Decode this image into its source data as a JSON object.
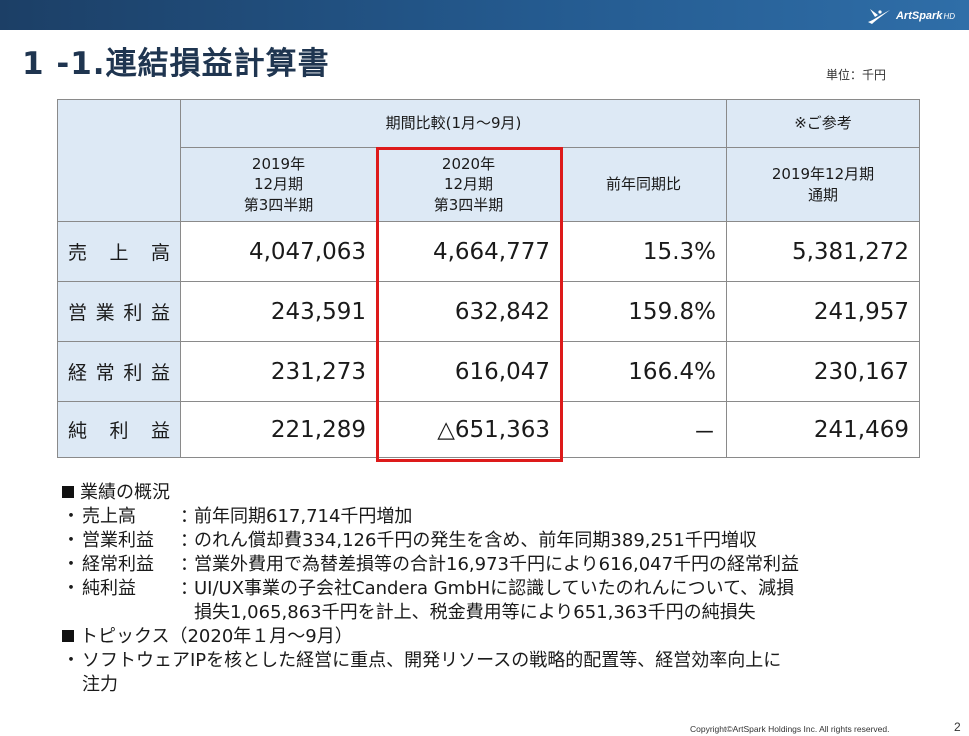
{
  "logo": {
    "name": "ArtSpark",
    "suffix": "HD"
  },
  "title": "1 -1.連結損益計算書",
  "unit": "単位：千円",
  "table": {
    "group_header": "期間比較(1月～9月)",
    "ref_header": "※ご参考",
    "columns": [
      {
        "lines": [
          "2019年",
          "12月期",
          "第3四半期"
        ]
      },
      {
        "lines": [
          "2020年",
          "12月期",
          "第3四半期"
        ]
      },
      {
        "lines": [
          "前年同期比"
        ]
      },
      {
        "lines": [
          "2019年12月期",
          "通期"
        ]
      }
    ],
    "rows": [
      {
        "label": [
          "売",
          "上",
          "高"
        ],
        "values": [
          "4,047,063",
          "4,664,777",
          "15.3%",
          "5,381,272"
        ]
      },
      {
        "label": [
          "営",
          "業",
          "利",
          "益"
        ],
        "values": [
          "243,591",
          "632,842",
          "159.8%",
          "241,957"
        ]
      },
      {
        "label": [
          "経",
          "常",
          "利",
          "益"
        ],
        "values": [
          "231,273",
          "616,047",
          "166.4%",
          "230,167"
        ]
      },
      {
        "label": [
          "純",
          "利",
          "益"
        ],
        "values": [
          "221,289",
          "△651,363",
          "－",
          "241,469"
        ]
      }
    ],
    "highlight_color": "#dd1a1a"
  },
  "summary": {
    "heading": "業績の概況",
    "items": [
      {
        "label": "売上高",
        "text": "前年同期617,714千円増加"
      },
      {
        "label": "営業利益",
        "text": "のれん償却費334,126千円の発生を含め、前年同期389,251千円増収"
      },
      {
        "label": "経常利益",
        "text": "営業外費用で為替差損等の合計16,973千円により616,047千円の経常利益"
      },
      {
        "label": "純利益",
        "text": "UI/UX事業の子会社Candera GmbHに認識していたのれんについて、減損",
        "text2": "損失1,065,863千円を計上、税金費用等により651,363千円の純損失"
      }
    ],
    "topics_heading": "トピックス（2020年１月～9月）",
    "topics": [
      {
        "text": "ソフトウェアIPを核とした経営に重点、開発リソースの戦略的配置等、経営効率向上に",
        "text2": "注力"
      }
    ]
  },
  "footer": "Copyright©ArtSpark Holdings Inc. All rights reserved.",
  "page_number": "2",
  "colors": {
    "header_bg": "#dde9f5",
    "topbar": "#245a8f",
    "title": "#1f3550"
  }
}
